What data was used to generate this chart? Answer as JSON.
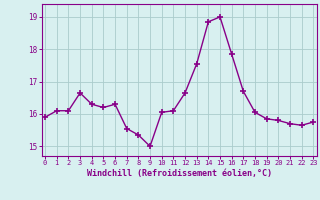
{
  "x": [
    0,
    1,
    2,
    3,
    4,
    5,
    6,
    7,
    8,
    9,
    10,
    11,
    12,
    13,
    14,
    15,
    16,
    17,
    18,
    19,
    20,
    21,
    22,
    23
  ],
  "y": [
    15.9,
    16.1,
    16.1,
    16.65,
    16.3,
    16.2,
    16.3,
    15.55,
    15.35,
    15.0,
    16.05,
    16.1,
    16.65,
    17.55,
    18.85,
    19.0,
    17.85,
    16.7,
    16.05,
    15.85,
    15.8,
    15.7,
    15.65,
    15.75
  ],
  "line_color": "#880088",
  "marker": "+",
  "markersize": 4,
  "markeredgewidth": 1.2,
  "linewidth": 1.0,
  "bg_color": "#d8f0f0",
  "grid_color": "#aacccc",
  "xlabel": "Windchill (Refroidissement éolien,°C)",
  "xlabel_color": "#880088",
  "tick_color": "#880088",
  "spine_color": "#880088",
  "ylim": [
    14.7,
    19.4
  ],
  "yticks": [
    15,
    16,
    17,
    18,
    19
  ],
  "xticks": [
    0,
    1,
    2,
    3,
    4,
    5,
    6,
    7,
    8,
    9,
    10,
    11,
    12,
    13,
    14,
    15,
    16,
    17,
    18,
    19,
    20,
    21,
    22,
    23
  ],
  "xlim": [
    -0.3,
    23.3
  ]
}
